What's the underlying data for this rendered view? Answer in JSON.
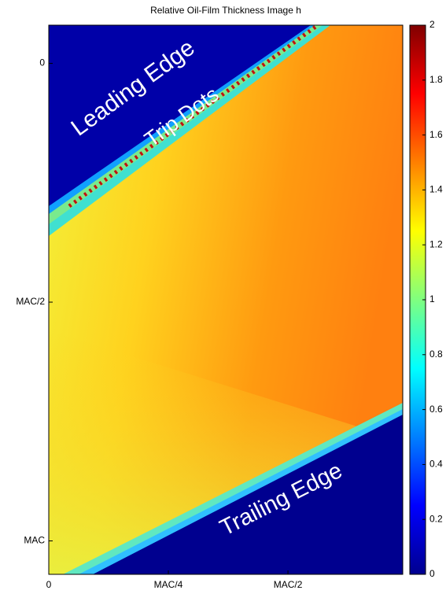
{
  "chart_data": {
    "type": "heatmap",
    "title": "Relative Oil-Film Thickness Image h",
    "xlim": [
      0,
      0.74
    ],
    "ylim": [
      1.07,
      -0.08
    ],
    "xticks": [
      0,
      {
        "value": 0.25,
        "label": "MAC/4"
      },
      {
        "value": 0.5,
        "label": "MAC/2"
      }
    ],
    "yticks": [
      0,
      {
        "value": 0.5,
        "label": "MAC/2"
      },
      {
        "value": 1,
        "label": "MAC"
      }
    ],
    "colormap": "jet",
    "clim": [
      0,
      2
    ],
    "cticks": [
      0,
      0.2,
      0.4,
      0.6,
      0.8,
      1,
      1.2,
      1.4,
      1.6,
      1.8,
      2
    ],
    "annotations": [
      "Leading Edge",
      "Trip Dots",
      "Trailing Edge"
    ]
  }
}
